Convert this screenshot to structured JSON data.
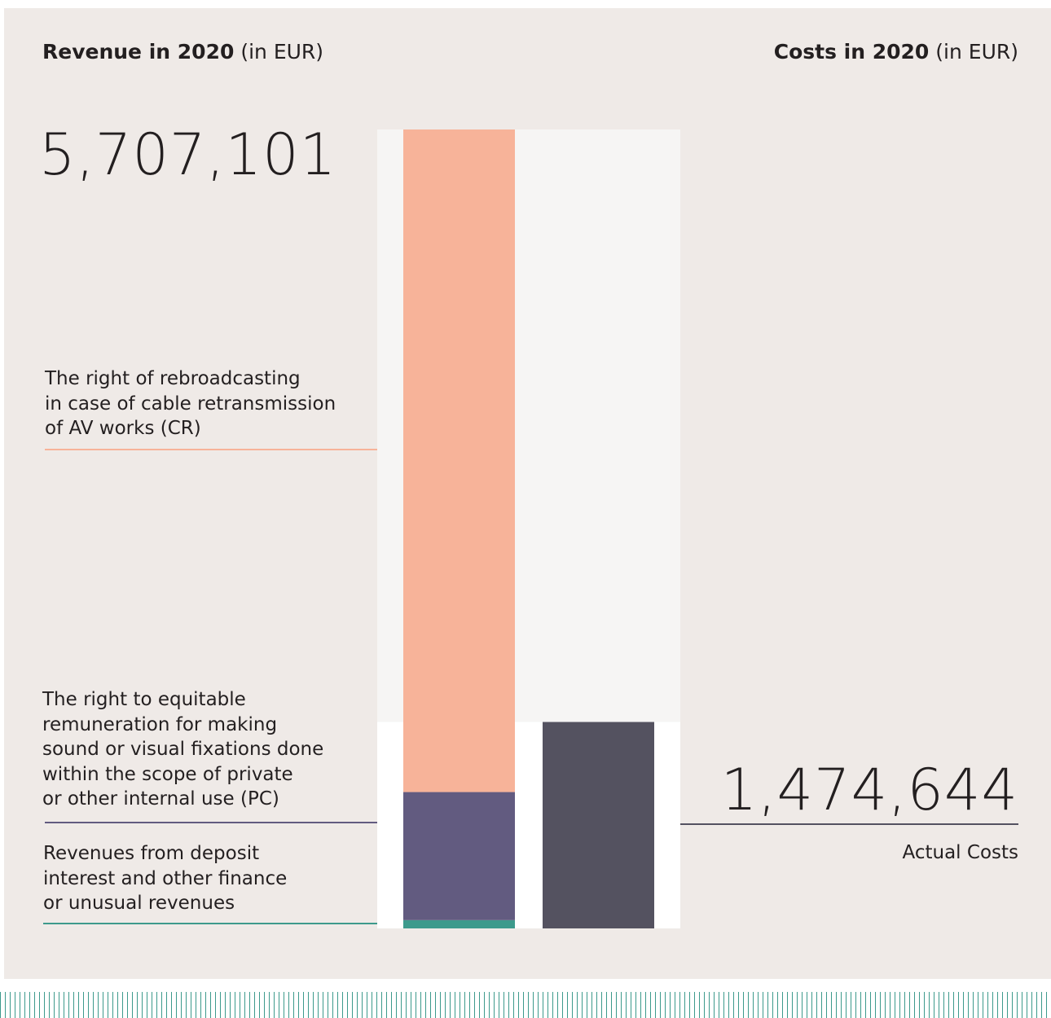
{
  "header": {
    "revenue_title_bold": "Revenue in 2020",
    "revenue_title_unit": "(in EUR)",
    "costs_title_bold": "Costs in 2020",
    "costs_title_unit": "(in EUR)"
  },
  "totals": {
    "revenue": "5,707,101",
    "costs": "1,474,644"
  },
  "labels": {
    "cr": [
      "The right of rebroadcasting",
      "in case of cable retransmission",
      "of AV works (CR)"
    ],
    "pc": [
      "The right to equitable",
      "remuneration for making",
      "sound or visual fixations done",
      "within the scope of private",
      "or other internal use (PC)"
    ],
    "finance": [
      "Revenues from deposit",
      "interest and other finance",
      "or unusual revenues"
    ],
    "costs": "Actual Costs"
  },
  "colors": {
    "background": "#efeae7",
    "cr": "#f7b399",
    "pc": "#625b80",
    "finance": "#3d9a8c",
    "costs": "#545260",
    "track": "#f6f5f4"
  },
  "chart_data": {
    "type": "bar",
    "stacked": true,
    "categories": [
      "Revenue in 2020",
      "Costs in 2020"
    ],
    "series": [
      {
        "name": "The right of rebroadcasting in case of cable retransmission of AV works (CR)",
        "values": [
          4733000,
          0
        ]
      },
      {
        "name": "The right to equitable remuneration for making sound or visual fixations done within the scope of private or other internal use (PC)",
        "values": [
          915000,
          0
        ]
      },
      {
        "name": "Revenues from deposit interest and other finance or unusual revenues",
        "values": [
          59101,
          0
        ]
      },
      {
        "name": "Actual Costs",
        "values": [
          0,
          1474644
        ]
      }
    ],
    "totals": [
      5707101,
      1474644
    ],
    "ylim": [
      0,
      5707101
    ]
  }
}
